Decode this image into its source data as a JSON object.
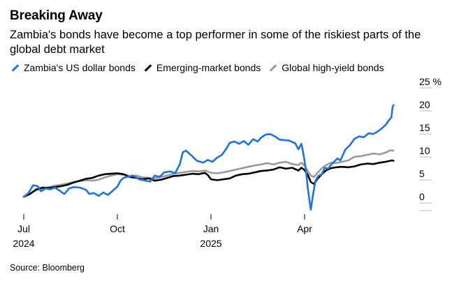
{
  "header": {
    "title": "Breaking Away",
    "subtitle": "Zambia's bonds have become a top performer in some of the riskiest parts of the global debt market"
  },
  "footer": {
    "source": "Source: Bloomberg"
  },
  "colors": {
    "zambia": "#1a73e8",
    "em": "#000000",
    "hy": "#9a9a9a",
    "grid": "#cfcfcf"
  },
  "chart_data": {
    "type": "line",
    "title": "Breaking Away",
    "subtitle": "Zambia's bonds have become a top performer in some of the riskiest parts of the global debt market",
    "ylabel": "%",
    "ylim": [
      -3,
      25
    ],
    "yticks": [
      0,
      5,
      10,
      15,
      20,
      25
    ],
    "ytick_labels": [
      "0",
      "5",
      "10",
      "15",
      "20",
      "25 %"
    ],
    "xlim": [
      0,
      12
    ],
    "xticks": [
      {
        "x": 0,
        "label": "Jul",
        "sublabel": "2024"
      },
      {
        "x": 3,
        "label": "Oct",
        "sublabel": ""
      },
      {
        "x": 6,
        "label": "Jan",
        "sublabel": "2025"
      },
      {
        "x": 9,
        "label": "Apr",
        "sublabel": ""
      }
    ],
    "xlabel": "",
    "legend": [
      "Zambia's US dollar bonds",
      "Emerging-market bonds",
      "Global high-yield bonds"
    ],
    "series": [
      {
        "name": "Zambia's US dollar bonds",
        "color": "#1a73e8",
        "points": [
          [
            0,
            0
          ],
          [
            0.15,
            0.8
          ],
          [
            0.3,
            2.5
          ],
          [
            0.45,
            2.3
          ],
          [
            0.55,
            1.2
          ],
          [
            0.7,
            1.8
          ],
          [
            0.85,
            1.6
          ],
          [
            1.0,
            2.0
          ],
          [
            1.15,
            1.3
          ],
          [
            1.3,
            0.6
          ],
          [
            1.45,
            1.8
          ],
          [
            1.6,
            2.1
          ],
          [
            1.8,
            2.0
          ],
          [
            2.0,
            1.5
          ],
          [
            2.1,
            0.6
          ],
          [
            2.25,
            0.8
          ],
          [
            2.4,
            0.2
          ],
          [
            2.55,
            0.9
          ],
          [
            2.7,
            0.4
          ],
          [
            2.85,
            1.3
          ],
          [
            3.0,
            2.2
          ],
          [
            3.1,
            3.5
          ],
          [
            3.2,
            4.1
          ],
          [
            3.3,
            4.3
          ],
          [
            3.5,
            4.6
          ],
          [
            3.7,
            3.8
          ],
          [
            3.9,
            3.5
          ],
          [
            4.05,
            3.3
          ],
          [
            4.2,
            4.6
          ],
          [
            4.35,
            4.3
          ],
          [
            4.5,
            5.3
          ],
          [
            4.7,
            5.5
          ],
          [
            4.85,
            5.1
          ],
          [
            5.0,
            7.0
          ],
          [
            5.1,
            9.7
          ],
          [
            5.2,
            10.0
          ],
          [
            5.35,
            9.1
          ],
          [
            5.55,
            7.8
          ],
          [
            5.75,
            7.4
          ],
          [
            5.9,
            8.0
          ],
          [
            6.05,
            7.6
          ],
          [
            6.2,
            8.5
          ],
          [
            6.35,
            9.1
          ],
          [
            6.5,
            10.5
          ],
          [
            6.6,
            11.7
          ],
          [
            6.75,
            12.0
          ],
          [
            6.9,
            11.5
          ],
          [
            7.05,
            12.1
          ],
          [
            7.2,
            11.3
          ],
          [
            7.35,
            12.5
          ],
          [
            7.5,
            12.0
          ],
          [
            7.6,
            12.8
          ],
          [
            7.75,
            13.5
          ],
          [
            7.9,
            13.6
          ],
          [
            8.05,
            13.1
          ],
          [
            8.2,
            12.4
          ],
          [
            8.35,
            12.3
          ],
          [
            8.5,
            12.2
          ],
          [
            8.7,
            11.6
          ],
          [
            8.8,
            10.3
          ],
          [
            8.9,
            11.5
          ],
          [
            8.97,
            9.0
          ],
          [
            9.05,
            5.5
          ],
          [
            9.1,
            2.0
          ],
          [
            9.15,
            -0.5
          ],
          [
            9.2,
            -2.8
          ],
          [
            9.27,
            0.5
          ],
          [
            9.35,
            3.5
          ],
          [
            9.45,
            4.6
          ],
          [
            9.55,
            4.9
          ],
          [
            9.65,
            6.3
          ],
          [
            9.75,
            6.1
          ],
          [
            9.9,
            7.3
          ],
          [
            10.05,
            8.3
          ],
          [
            10.15,
            7.9
          ],
          [
            10.3,
            10.2
          ],
          [
            10.45,
            11.2
          ],
          [
            10.6,
            12.6
          ],
          [
            10.75,
            13.1
          ],
          [
            10.9,
            12.9
          ],
          [
            11.05,
            13.8
          ],
          [
            11.2,
            13.6
          ],
          [
            11.35,
            14.2
          ],
          [
            11.5,
            15.0
          ],
          [
            11.6,
            15.6
          ],
          [
            11.7,
            16.6
          ],
          [
            11.78,
            17.2
          ],
          [
            11.82,
            19.5
          ],
          [
            11.85,
            19.9
          ]
        ]
      },
      {
        "name": "Emerging-market bonds",
        "color": "#000000",
        "points": [
          [
            0,
            0
          ],
          [
            0.2,
            0.6
          ],
          [
            0.4,
            1.6
          ],
          [
            0.6,
            2.0
          ],
          [
            0.8,
            1.9
          ],
          [
            1.0,
            2.1
          ],
          [
            1.2,
            2.3
          ],
          [
            1.4,
            2.6
          ],
          [
            1.6,
            3.1
          ],
          [
            1.8,
            3.5
          ],
          [
            2.0,
            3.9
          ],
          [
            2.2,
            4.1
          ],
          [
            2.4,
            4.6
          ],
          [
            2.6,
            4.9
          ],
          [
            2.8,
            5.0
          ],
          [
            3.0,
            5.1
          ],
          [
            3.2,
            4.9
          ],
          [
            3.4,
            4.3
          ],
          [
            3.6,
            4.1
          ],
          [
            3.8,
            3.8
          ],
          [
            4.0,
            4.0
          ],
          [
            4.2,
            3.5
          ],
          [
            4.4,
            3.7
          ],
          [
            4.6,
            4.1
          ],
          [
            4.8,
            4.5
          ],
          [
            5.0,
            4.6
          ],
          [
            5.2,
            4.8
          ],
          [
            5.4,
            5.0
          ],
          [
            5.6,
            4.9
          ],
          [
            5.8,
            5.2
          ],
          [
            5.9,
            4.7
          ],
          [
            6.0,
            3.8
          ],
          [
            6.2,
            3.6
          ],
          [
            6.4,
            3.8
          ],
          [
            6.6,
            4.0
          ],
          [
            6.8,
            4.6
          ],
          [
            7.0,
            4.9
          ],
          [
            7.2,
            5.0
          ],
          [
            7.4,
            5.3
          ],
          [
            7.6,
            5.6
          ],
          [
            7.8,
            5.7
          ],
          [
            8.0,
            5.9
          ],
          [
            8.2,
            6.4
          ],
          [
            8.4,
            6.1
          ],
          [
            8.6,
            6.3
          ],
          [
            8.8,
            5.7
          ],
          [
            8.9,
            6.3
          ],
          [
            9.0,
            5.8
          ],
          [
            9.1,
            4.8
          ],
          [
            9.2,
            3.2
          ],
          [
            9.3,
            2.8
          ],
          [
            9.4,
            3.8
          ],
          [
            9.55,
            4.9
          ],
          [
            9.7,
            5.8
          ],
          [
            9.85,
            6.2
          ],
          [
            10.0,
            6.4
          ],
          [
            10.2,
            6.5
          ],
          [
            10.4,
            6.4
          ],
          [
            10.6,
            6.6
          ],
          [
            10.8,
            7.0
          ],
          [
            11.0,
            7.2
          ],
          [
            11.2,
            7.1
          ],
          [
            11.4,
            7.4
          ],
          [
            11.6,
            7.6
          ],
          [
            11.8,
            7.9
          ],
          [
            11.85,
            7.8
          ]
        ]
      },
      {
        "name": "Global high-yield bonds",
        "color": "#9a9a9a",
        "points": [
          [
            0,
            0
          ],
          [
            0.2,
            0.7
          ],
          [
            0.4,
            1.4
          ],
          [
            0.6,
            1.8
          ],
          [
            0.8,
            2.1
          ],
          [
            1.0,
            2.4
          ],
          [
            1.2,
            2.6
          ],
          [
            1.4,
            2.9
          ],
          [
            1.6,
            3.2
          ],
          [
            1.8,
            3.4
          ],
          [
            2.0,
            3.6
          ],
          [
            2.2,
            3.5
          ],
          [
            2.4,
            3.7
          ],
          [
            2.6,
            4.2
          ],
          [
            2.8,
            4.6
          ],
          [
            3.0,
            4.9
          ],
          [
            3.2,
            4.8
          ],
          [
            3.4,
            4.4
          ],
          [
            3.6,
            4.6
          ],
          [
            3.8,
            4.2
          ],
          [
            4.0,
            4.1
          ],
          [
            4.2,
            4.0
          ],
          [
            4.4,
            4.3
          ],
          [
            4.6,
            4.6
          ],
          [
            4.8,
            5.0
          ],
          [
            5.0,
            5.2
          ],
          [
            5.2,
            5.4
          ],
          [
            5.4,
            5.6
          ],
          [
            5.6,
            5.5
          ],
          [
            5.8,
            5.7
          ],
          [
            6.0,
            5.2
          ],
          [
            6.2,
            5.1
          ],
          [
            6.4,
            5.3
          ],
          [
            6.6,
            5.6
          ],
          [
            6.8,
            5.9
          ],
          [
            7.0,
            6.2
          ],
          [
            7.2,
            6.5
          ],
          [
            7.4,
            6.8
          ],
          [
            7.6,
            7.0
          ],
          [
            7.8,
            7.3
          ],
          [
            8.0,
            7.0
          ],
          [
            8.2,
            7.4
          ],
          [
            8.4,
            7.6
          ],
          [
            8.6,
            7.1
          ],
          [
            8.8,
            6.9
          ],
          [
            8.9,
            7.4
          ],
          [
            9.0,
            6.8
          ],
          [
            9.1,
            5.6
          ],
          [
            9.2,
            4.6
          ],
          [
            9.3,
            4.3
          ],
          [
            9.4,
            5.1
          ],
          [
            9.55,
            6.2
          ],
          [
            9.7,
            6.9
          ],
          [
            9.85,
            7.4
          ],
          [
            10.0,
            7.3
          ],
          [
            10.2,
            7.6
          ],
          [
            10.4,
            7.9
          ],
          [
            10.6,
            8.7
          ],
          [
            10.8,
            8.8
          ],
          [
            11.0,
            9.1
          ],
          [
            11.2,
            9.4
          ],
          [
            11.4,
            9.2
          ],
          [
            11.6,
            9.6
          ],
          [
            11.75,
            10.1
          ],
          [
            11.85,
            10.0
          ]
        ]
      }
    ]
  }
}
